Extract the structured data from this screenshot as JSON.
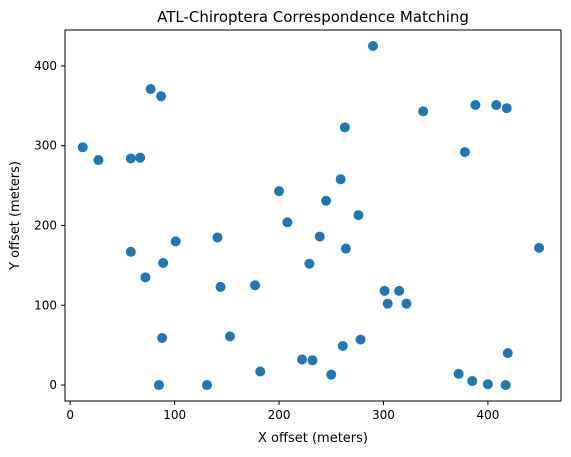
{
  "chart_data": {
    "type": "scatter",
    "title": "ATL-Chiroptera Correspondence Matching",
    "xlabel": "X offset (meters)",
    "ylabel": "Y offset (meters)",
    "xlim": [
      -5,
      470
    ],
    "ylim": [
      -20,
      445
    ],
    "x_ticks": [
      0,
      100,
      200,
      300,
      400
    ],
    "y_ticks": [
      0,
      100,
      200,
      300,
      400
    ],
    "grid": false,
    "legend": "none",
    "marker_color": "#1f77b4",
    "points": [
      [
        12,
        298
      ],
      [
        27,
        282
      ],
      [
        58,
        284
      ],
      [
        67,
        285
      ],
      [
        77,
        371
      ],
      [
        87,
        362
      ],
      [
        58,
        167
      ],
      [
        89,
        153
      ],
      [
        101,
        180
      ],
      [
        72,
        135
      ],
      [
        88,
        59
      ],
      [
        85,
        0
      ],
      [
        131,
        0
      ],
      [
        141,
        185
      ],
      [
        144,
        123
      ],
      [
        153,
        61
      ],
      [
        177,
        125
      ],
      [
        182,
        17
      ],
      [
        200,
        243
      ],
      [
        208,
        204
      ],
      [
        229,
        152
      ],
      [
        239,
        186
      ],
      [
        245,
        231
      ],
      [
        259,
        258
      ],
      [
        263,
        323
      ],
      [
        264,
        171
      ],
      [
        276,
        213
      ],
      [
        222,
        32
      ],
      [
        232,
        31
      ],
      [
        250,
        13
      ],
      [
        261,
        49
      ],
      [
        278,
        57
      ],
      [
        290,
        425
      ],
      [
        338,
        343
      ],
      [
        301,
        118
      ],
      [
        304,
        102
      ],
      [
        315,
        118
      ],
      [
        322,
        102
      ],
      [
        378,
        292
      ],
      [
        388,
        351
      ],
      [
        408,
        351
      ],
      [
        418,
        347
      ],
      [
        372,
        14
      ],
      [
        385,
        5
      ],
      [
        400,
        1
      ],
      [
        417,
        0
      ],
      [
        419,
        40
      ],
      [
        449,
        172
      ]
    ]
  }
}
